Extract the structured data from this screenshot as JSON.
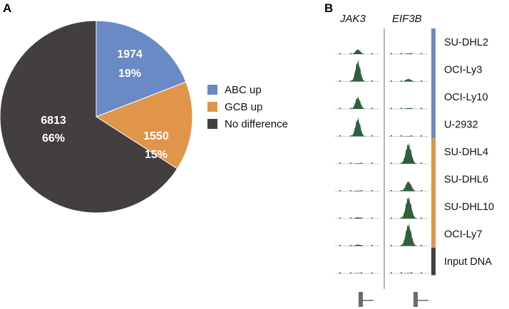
{
  "panel_a": {
    "label": "A",
    "chart_data": {
      "type": "pie",
      "title": "",
      "slices": [
        {
          "name": "ABC up",
          "count": "1974",
          "percent_label": "19%",
          "value": 1974,
          "color": "#6a8ac5"
        },
        {
          "name": "GCB up",
          "count": "1550",
          "percent_label": "15%",
          "value": 1550,
          "color": "#e0954a"
        },
        {
          "name": "No difference",
          "count": "6813",
          "percent_label": "66%",
          "value": 6813,
          "color": "#433f40"
        }
      ],
      "legend": {
        "placement": "right",
        "entries": [
          "ABC up",
          "GCB up",
          "No difference"
        ]
      }
    }
  },
  "panel_b": {
    "label": "B",
    "chart_data": {
      "type": "area",
      "description_note": "ChIP-seq signal tracks per cell line at two gene loci",
      "genes": [
        "JAK3",
        "EIF3B"
      ],
      "track_color": "#2f5f3b",
      "cell_lines": [
        {
          "name": "SU-DHL2",
          "group": "ABC",
          "jak3_peak": 0.22,
          "eif3b_peak": 0.03
        },
        {
          "name": "OCI-Ly3",
          "group": "ABC",
          "jak3_peak": 0.95,
          "eif3b_peak": 0.12
        },
        {
          "name": "OCI-Ly10",
          "group": "ABC",
          "jak3_peak": 0.55,
          "eif3b_peak": 0.04
        },
        {
          "name": "U-2932",
          "group": "ABC",
          "jak3_peak": 0.82,
          "eif3b_peak": 0.02
        },
        {
          "name": "SU-DHL4",
          "group": "GCB",
          "jak3_peak": 0.03,
          "eif3b_peak": 0.92
        },
        {
          "name": "SU-DHL6",
          "group": "GCB",
          "jak3_peak": 0.03,
          "eif3b_peak": 0.45
        },
        {
          "name": "SU-DHL10",
          "group": "GCB",
          "jak3_peak": 0.06,
          "eif3b_peak": 0.98
        },
        {
          "name": "OCI-Ly7",
          "group": "GCB",
          "jak3_peak": 0.07,
          "eif3b_peak": 1.0
        },
        {
          "name": "Input DNA",
          "group": "Input",
          "jak3_peak": 0.02,
          "eif3b_peak": 0.02
        }
      ],
      "group_colors": {
        "ABC": "#6a8ac5",
        "GCB": "#e0954a",
        "Input": "#433f40"
      }
    }
  }
}
